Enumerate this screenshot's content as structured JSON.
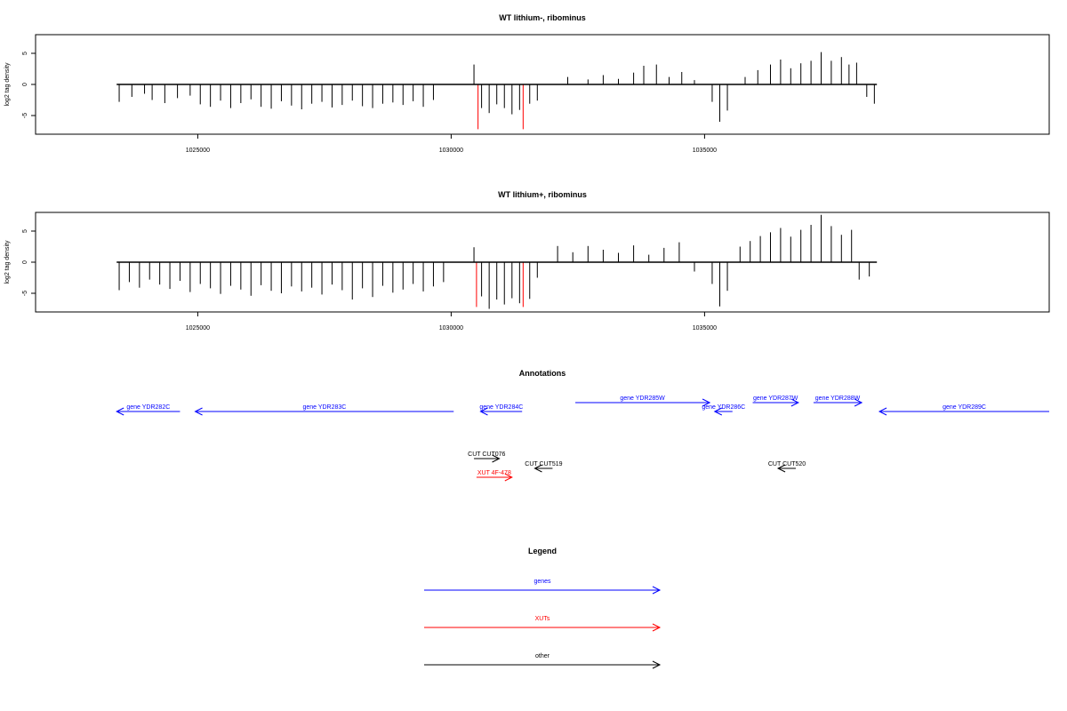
{
  "chart_data": [
    {
      "type": "bar",
      "title": "WT lithium-, ribominus",
      "xlabel": "",
      "ylabel": "log2 tag density",
      "xlim": [
        1021800,
        1041800
      ],
      "ylim": [
        -8,
        8
      ],
      "x_ticks": [
        {
          "value": 1025000,
          "label": "1025000"
        },
        {
          "value": 1030000,
          "label": "1030000"
        },
        {
          "value": 1035000,
          "label": "1035000"
        }
      ],
      "y_ticks": [
        {
          "value": 5,
          "label": "5"
        },
        {
          "value": 0,
          "label": "0"
        },
        {
          "value": -5,
          "label": "-5"
        }
      ],
      "baseline_range": [
        1023400,
        1038400
      ],
      "highlight_lines": [
        {
          "x": 1030530,
          "y": -7.2,
          "color": "#ff0000"
        },
        {
          "x": 1031420,
          "y": -7.2,
          "color": "#ff0000"
        }
      ],
      "series": [
        {
          "color": "#000000",
          "x": [
            1023450,
            1023700,
            1023950,
            1024100,
            1024350,
            1024600,
            1024850,
            1025050,
            1025250,
            1025450,
            1025650,
            1025850,
            1026050,
            1026250,
            1026450,
            1026650,
            1026850,
            1027050,
            1027250,
            1027450,
            1027650,
            1027850,
            1028050,
            1028250,
            1028450,
            1028650,
            1028850,
            1029050,
            1029250,
            1029450,
            1029650,
            1030450,
            1030600,
            1030750,
            1030900,
            1031050,
            1031200,
            1031350,
            1031550,
            1031700,
            1032300,
            1032700,
            1033000,
            1033300,
            1033600,
            1033800,
            1034050,
            1034300,
            1034550,
            1034800,
            1035150,
            1035300,
            1035450,
            1035800,
            1036050,
            1036300,
            1036500,
            1036700,
            1036900,
            1037100,
            1037300,
            1037500,
            1037700,
            1037850,
            1038000,
            1038200,
            1038350
          ],
          "values": [
            -2.8,
            -2,
            -1.5,
            -2.5,
            -3,
            -2.2,
            -1.8,
            -3.2,
            -3.6,
            -2.6,
            -3.8,
            -3,
            -2.4,
            -3.6,
            -3.9,
            -2.7,
            -3.4,
            -4,
            -3.1,
            -2.8,
            -3.7,
            -3.3,
            -2.6,
            -3.5,
            -3.8,
            -3.1,
            -2.9,
            -3.3,
            -2.7,
            -3.6,
            -2.5,
            3.2,
            -3.8,
            -4.6,
            -3.2,
            -3.8,
            -4.8,
            -4.1,
            -3.1,
            -2.6,
            1.2,
            0.8,
            1.5,
            0.9,
            1.9,
            3,
            3.2,
            1.2,
            2,
            0.7,
            -2.8,
            -6,
            -4.2,
            1.2,
            2.3,
            3.2,
            4,
            2.6,
            3.4,
            3.8,
            5.2,
            3.8,
            4.4,
            3.2,
            3.5,
            -2,
            -3.1
          ]
        }
      ]
    },
    {
      "type": "bar",
      "title": "WT lithium+, ribominus",
      "xlabel": "",
      "ylabel": "log2 tag density",
      "xlim": [
        1021800,
        1041800
      ],
      "ylim": [
        -8,
        8
      ],
      "x_ticks": [
        {
          "value": 1025000,
          "label": "1025000"
        },
        {
          "value": 1030000,
          "label": "1030000"
        },
        {
          "value": 1035000,
          "label": "1035000"
        }
      ],
      "y_ticks": [
        {
          "value": 5,
          "label": "5"
        },
        {
          "value": 0,
          "label": "0"
        },
        {
          "value": -5,
          "label": "-5"
        }
      ],
      "baseline_range": [
        1023400,
        1038400
      ],
      "highlight_lines": [
        {
          "x": 1030500,
          "y": -7.2,
          "color": "#ff0000"
        },
        {
          "x": 1031420,
          "y": -7.2,
          "color": "#ff0000"
        }
      ],
      "series": [
        {
          "color": "#000000",
          "x": [
            1023450,
            1023650,
            1023850,
            1024050,
            1024250,
            1024450,
            1024650,
            1024850,
            1025050,
            1025250,
            1025450,
            1025650,
            1025850,
            1026050,
            1026250,
            1026450,
            1026650,
            1026850,
            1027050,
            1027250,
            1027450,
            1027650,
            1027850,
            1028050,
            1028250,
            1028450,
            1028650,
            1028850,
            1029050,
            1029250,
            1029450,
            1029650,
            1029850,
            1030450,
            1030600,
            1030750,
            1030900,
            1031050,
            1031200,
            1031350,
            1031550,
            1031700,
            1032100,
            1032400,
            1032700,
            1033000,
            1033300,
            1033600,
            1033900,
            1034200,
            1034500,
            1034800,
            1035150,
            1035300,
            1035450,
            1035700,
            1035900,
            1036100,
            1036300,
            1036500,
            1036700,
            1036900,
            1037100,
            1037300,
            1037500,
            1037700,
            1037900,
            1038050,
            1038250
          ],
          "values": [
            -4.5,
            -3.2,
            -4.1,
            -2.8,
            -3.6,
            -4.3,
            -3,
            -4.8,
            -3.5,
            -4.2,
            -5.1,
            -3.8,
            -4.4,
            -5.4,
            -3.7,
            -4.6,
            -5,
            -3.9,
            -4.7,
            -4.1,
            -5.2,
            -3.6,
            -4.5,
            -6,
            -4.2,
            -5.6,
            -3.8,
            -4.9,
            -4.4,
            -3.5,
            -4.7,
            -3.9,
            -3.2,
            2.4,
            -5.5,
            -7.5,
            -6,
            -6.8,
            -5.8,
            -6.6,
            -5.9,
            -2.5,
            2.6,
            1.6,
            2.6,
            2,
            1.5,
            2.7,
            1.2,
            2.3,
            3.2,
            -1.5,
            -3.5,
            -7.1,
            -4.6,
            2.5,
            3.4,
            4.2,
            4.8,
            5.5,
            4.1,
            5.2,
            6,
            7.6,
            5.8,
            4.4,
            5.2,
            -2.8,
            -2.3
          ]
        }
      ]
    }
  ],
  "annotations": {
    "title": "Annotations",
    "items": [
      {
        "label": "gene YDR282C",
        "color": "#0000ff",
        "start": 1023400,
        "end": 1024650,
        "strand": "-",
        "row": 0
      },
      {
        "label": "gene YDR283C",
        "color": "#0000ff",
        "start": 1024950,
        "end": 1030050,
        "strand": "-",
        "row": 0
      },
      {
        "label": "gene YDR284C",
        "color": "#0000ff",
        "start": 1030580,
        "end": 1031400,
        "strand": "-",
        "row": 0
      },
      {
        "label": "gene YDR285W",
        "color": "#0000ff",
        "start": 1032450,
        "end": 1035100,
        "strand": "+",
        "row": 1
      },
      {
        "label": "gene YDR286C",
        "color": "#0000ff",
        "start": 1035200,
        "end": 1035550,
        "strand": "-",
        "row": 0
      },
      {
        "label": "gene YDR287W",
        "color": "#0000ff",
        "start": 1035950,
        "end": 1036850,
        "strand": "+",
        "row": 1
      },
      {
        "label": "gene YDR288W",
        "color": "#0000ff",
        "start": 1037150,
        "end": 1038100,
        "strand": "+",
        "row": 1
      },
      {
        "label": "gene YDR289C",
        "color": "#0000ff",
        "start": 1038450,
        "end": 1041800,
        "strand": "-",
        "row": 0
      },
      {
        "label": "CUT CUT076",
        "color": "#000000",
        "start": 1030450,
        "end": 1030950,
        "strand": "+",
        "row": 2
      },
      {
        "label": "CUT CUT519",
        "color": "#000000",
        "start": 1031650,
        "end": 1032000,
        "strand": "-",
        "row": 3
      },
      {
        "label": "CUT CUT520",
        "color": "#000000",
        "start": 1036450,
        "end": 1036800,
        "strand": "-",
        "row": 3
      },
      {
        "label": "XUT 4F-478",
        "color": "#ff0000",
        "start": 1030500,
        "end": 1031200,
        "strand": "+",
        "row": 4
      }
    ]
  },
  "legend": {
    "title": "Legend",
    "items": [
      {
        "label": "genes",
        "color": "#0000ff"
      },
      {
        "label": "XUTs",
        "color": "#ff0000"
      },
      {
        "label": "other",
        "color": "#000000"
      }
    ]
  }
}
